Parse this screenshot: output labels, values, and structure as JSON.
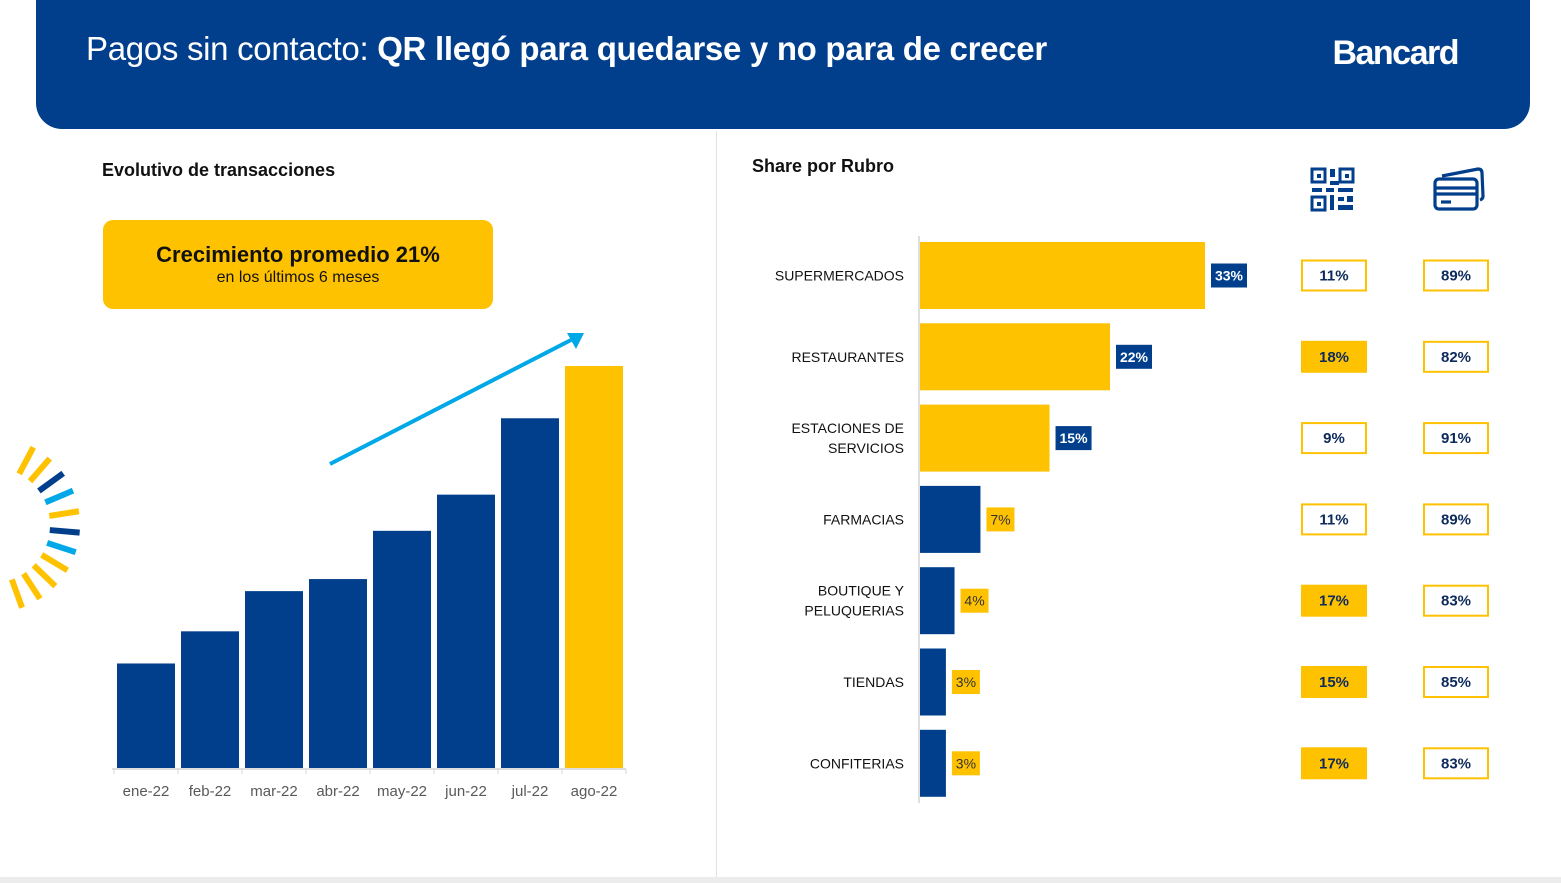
{
  "header": {
    "title_regular": "Pagos sin contacto: ",
    "title_bold": "QR llegó para quedarse y no para de crecer",
    "brand": "Bancard"
  },
  "left": {
    "section_title": "Evolutivo de transacciones",
    "callout": {
      "main": "Crecimiento promedio 21%",
      "sub": "en los últimos 6 meses"
    }
  },
  "right": {
    "section_title": "Share por Rubro",
    "col_icons": [
      "qr-code-icon",
      "credit-card-icon"
    ]
  },
  "colors": {
    "navy": "#013f8c",
    "yellow": "#ffc200",
    "arrow": "#00a8e8"
  },
  "chart_data": [
    {
      "type": "bar",
      "title": "Evolutivo de transacciones",
      "categories": [
        "ene-22",
        "feb-22",
        "mar-22",
        "abr-22",
        "may-22",
        "jun-22",
        "jul-22",
        "ago-22"
      ],
      "values": [
        26,
        34,
        44,
        47,
        59,
        68,
        87,
        100
      ],
      "highlight_last": true,
      "trend_arrow": true,
      "grid": false
    },
    {
      "type": "bar",
      "orientation": "horizontal",
      "title": "Share por Rubro",
      "categories": [
        "SUPERMERCADOS",
        "RESTAURANTES",
        "ESTACIONES DE SERVICIOS",
        "FARMACIAS",
        "BOUTIQUE Y PELUQUERIAS",
        "TIENDAS",
        "CONFITERIAS"
      ],
      "values": [
        33,
        22,
        15,
        7,
        4,
        3,
        3
      ],
      "value_labels": [
        "33%",
        "22%",
        "15%",
        "7%",
        "4%",
        "3%",
        "3%"
      ],
      "qr_share": [
        "11%",
        "18%",
        "9%",
        "11%",
        "17%",
        "15%",
        "17%"
      ],
      "card_share": [
        "89%",
        "82%",
        "91%",
        "89%",
        "83%",
        "85%",
        "83%"
      ],
      "qr_highlight": [
        false,
        true,
        false,
        false,
        true,
        true,
        true
      ],
      "xlim": [
        0,
        33
      ]
    }
  ]
}
